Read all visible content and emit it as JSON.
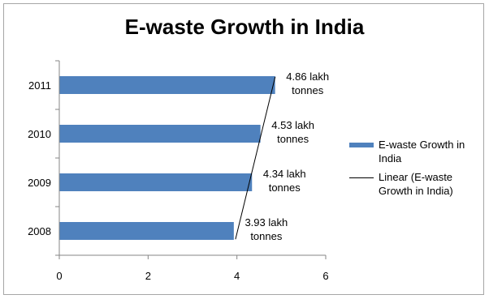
{
  "chart_data": {
    "type": "bar",
    "orientation": "horizontal",
    "title": "E-waste Growth in India",
    "categories": [
      "2008",
      "2009",
      "2010",
      "2011"
    ],
    "series": [
      {
        "name": "E-waste Growth in India",
        "values": [
          3.93,
          4.34,
          4.53,
          4.86
        ],
        "color": "#4f81bd"
      }
    ],
    "data_labels": [
      "3.93 lakh tonnes",
      "4.34 lakh tonnes",
      "4.53 lakh tonnes",
      "4.86 lakh tonnes"
    ],
    "trendline": {
      "type": "linear",
      "name": "Linear (E-waste Growth in India)",
      "color": "#000000"
    },
    "xlim": [
      0,
      6
    ],
    "x_ticks": [
      "0",
      "2",
      "4",
      "6"
    ],
    "grid": false,
    "legend_position": "right"
  }
}
